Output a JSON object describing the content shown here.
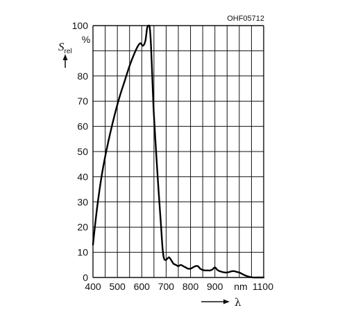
{
  "chart_data": {
    "type": "line",
    "code": "OHF05712",
    "xlabel": "λ",
    "x_unit": "nm",
    "ylabel_symbol": "S",
    "ylabel_subscript": "rel",
    "y_unit": "%",
    "xlim": [
      400,
      1100
    ],
    "ylim": [
      0,
      100
    ],
    "grid": true,
    "x_ticks": [
      "400",
      "500",
      "600",
      "700",
      "800",
      "900",
      "1100"
    ],
    "y_ticks": [
      "0",
      "10",
      "20",
      "30",
      "40",
      "50",
      "60",
      "70",
      "80",
      "100"
    ],
    "series": [
      {
        "x": [
          400,
          410,
          420,
          435,
          450,
          470,
          490,
          510,
          530,
          550,
          570,
          585,
          595,
          605,
          615,
          622,
          628,
          633,
          638,
          643,
          648,
          655,
          662,
          670,
          678,
          685,
          690,
          695,
          700,
          705,
          712,
          720,
          730,
          740,
          750,
          760,
          770,
          780,
          790,
          800,
          810,
          820,
          830,
          840,
          850,
          860,
          870,
          880,
          890,
          900,
          910,
          920,
          930,
          940,
          950,
          960,
          970,
          980,
          990,
          1000,
          1010,
          1020,
          1030,
          1040,
          1050,
          1060,
          1070,
          1080,
          1090,
          1100
        ],
        "y": [
          13,
          22,
          30,
          40,
          48,
          57,
          65,
          72,
          78,
          84,
          89,
          92,
          93,
          92,
          94,
          99,
          100,
          99,
          92,
          80,
          68,
          56,
          45,
          33,
          22,
          12,
          8,
          7,
          7,
          7.5,
          8,
          7,
          5.5,
          5,
          4.5,
          5,
          4.5,
          4,
          3.5,
          3.5,
          4,
          4.5,
          4.5,
          3.5,
          3,
          2.8,
          2.8,
          2.8,
          3.2,
          4,
          3,
          2.5,
          2.2,
          2,
          2,
          2.2,
          2.5,
          2.5,
          2.2,
          2,
          1.5,
          1,
          0.6,
          0.3,
          0.1,
          0,
          0,
          0,
          0,
          0
        ]
      }
    ]
  }
}
